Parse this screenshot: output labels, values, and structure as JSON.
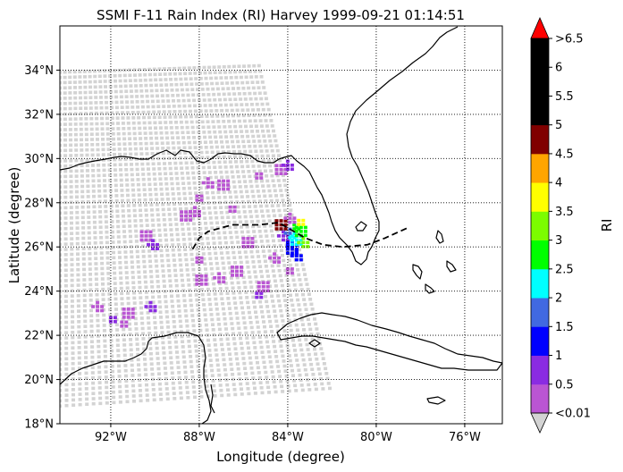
{
  "chart_data": {
    "type": "scatter",
    "title": "SSMI F-11 Rain Index (RI) Harvey 1999-09-21 01:14:51",
    "xlabel": "Longitude (degree)",
    "ylabel": "Latitude (degree)",
    "xlim": [
      -94.3,
      -74.3
    ],
    "ylim": [
      18,
      36
    ],
    "xticks": [
      {
        "value": -92,
        "label": "92°W"
      },
      {
        "value": -88,
        "label": "88°W"
      },
      {
        "value": -84,
        "label": "84°W"
      },
      {
        "value": -80,
        "label": "80°W"
      },
      {
        "value": -76,
        "label": "76°W"
      }
    ],
    "yticks": [
      {
        "value": 18,
        "label": "18°N"
      },
      {
        "value": 20,
        "label": "20°N"
      },
      {
        "value": 22,
        "label": "22°N"
      },
      {
        "value": 24,
        "label": "24°N"
      },
      {
        "value": 26,
        "label": "26°N"
      },
      {
        "value": 28,
        "label": "28°N"
      },
      {
        "value": 30,
        "label": "30°N"
      },
      {
        "value": 32,
        "label": "32°N"
      },
      {
        "value": 34,
        "label": "34°N"
      }
    ],
    "grid": "dotted",
    "colorbar": {
      "label": "RI",
      "under": {
        "label": "<0.01",
        "color": "#d3d3d3"
      },
      "over": {
        "label": ">6.5",
        "color": "#ff0000"
      },
      "bins": [
        {
          "lo": 0.01,
          "hi": 0.5,
          "color": "#ba55d3"
        },
        {
          "lo": 0.5,
          "hi": 1,
          "color": "#8a2be2"
        },
        {
          "lo": 1,
          "hi": 1.5,
          "color": "#0000ff"
        },
        {
          "lo": 1.5,
          "hi": 2,
          "color": "#4169e1"
        },
        {
          "lo": 2,
          "hi": 2.5,
          "color": "#00ffff"
        },
        {
          "lo": 2.5,
          "hi": 3,
          "color": "#00ff00"
        },
        {
          "lo": 3,
          "hi": 3.5,
          "color": "#7cfc00"
        },
        {
          "lo": 3.5,
          "hi": 4,
          "color": "#ffff00"
        },
        {
          "lo": 4,
          "hi": 4.5,
          "color": "#ffa500"
        },
        {
          "lo": 4.5,
          "hi": 5,
          "color": "#800000"
        },
        {
          "lo": 5,
          "hi": 5.5,
          "color": "#000000"
        },
        {
          "lo": 5.5,
          "hi": 6,
          "color": "#000000"
        },
        {
          "lo": 6,
          "hi": 6.5,
          "color": "#000000"
        }
      ],
      "tick_labels": [
        "<0.01",
        "0.5",
        "1",
        "1.5",
        "2",
        "2.5",
        "3",
        "3.5",
        "4",
        "4.5",
        "5",
        "5.5",
        "6",
        ">6.5"
      ]
    },
    "swath": {
      "color": "#d3d3d3",
      "corners": [
        [
          -94.3,
          33.9
        ],
        [
          -85.3,
          34.2
        ],
        [
          -84.7,
          31.5
        ],
        [
          -82.1,
          19.6
        ],
        [
          -94.3,
          18.8
        ]
      ]
    },
    "rain_clusters": [
      {
        "lon": -84.3,
        "lat": 29.5,
        "ri": 0.3
      },
      {
        "lon": -84.0,
        "lat": 29.7,
        "ri": 0.7
      },
      {
        "lon": -85.4,
        "lat": 29.3,
        "ri": 0.3
      },
      {
        "lon": -86.9,
        "lat": 28.8,
        "ri": 0.3
      },
      {
        "lon": -87.6,
        "lat": 28.9,
        "ri": 0.3
      },
      {
        "lon": -88.1,
        "lat": 28.3,
        "ri": 0.3
      },
      {
        "lon": -88.6,
        "lat": 27.4,
        "ri": 0.3
      },
      {
        "lon": -88.2,
        "lat": 27.6,
        "ri": 0.3
      },
      {
        "lon": -86.6,
        "lat": 27.8,
        "ri": 0.3
      },
      {
        "lon": -85.8,
        "lat": 26.2,
        "ri": 0.3
      },
      {
        "lon": -84.6,
        "lat": 25.5,
        "ri": 0.3
      },
      {
        "lon": -84.0,
        "lat": 25.0,
        "ri": 0.3
      },
      {
        "lon": -90.4,
        "lat": 26.5,
        "ri": 0.3
      },
      {
        "lon": -90.1,
        "lat": 26.1,
        "ri": 0.7
      },
      {
        "lon": -88.1,
        "lat": 25.5,
        "ri": 0.3
      },
      {
        "lon": -86.3,
        "lat": 24.9,
        "ri": 0.3
      },
      {
        "lon": -87.1,
        "lat": 24.6,
        "ri": 0.3
      },
      {
        "lon": -85.4,
        "lat": 23.9,
        "ri": 0.7
      },
      {
        "lon": -85.1,
        "lat": 24.2,
        "ri": 0.3
      },
      {
        "lon": -90.2,
        "lat": 23.3,
        "ri": 0.7
      },
      {
        "lon": -92.0,
        "lat": 22.8,
        "ri": 0.7
      },
      {
        "lon": -91.2,
        "lat": 23.0,
        "ri": 0.3
      },
      {
        "lon": -92.6,
        "lat": 23.3,
        "ri": 0.3
      },
      {
        "lon": -91.5,
        "lat": 22.6,
        "ri": 0.3
      },
      {
        "lon": -87.9,
        "lat": 24.5,
        "ri": 0.3
      },
      {
        "lon": -84.2,
        "lat": 26.5,
        "ri": 0.7
      },
      {
        "lon": -84.0,
        "lat": 26.2,
        "ri": 1.2
      },
      {
        "lon": -83.8,
        "lat": 25.9,
        "ri": 1.2
      },
      {
        "lon": -83.6,
        "lat": 25.6,
        "ri": 1.2
      },
      {
        "lon": -83.9,
        "lat": 26.6,
        "ri": 2.2
      },
      {
        "lon": -83.6,
        "lat": 26.3,
        "ri": 2.2
      },
      {
        "lon": -84.1,
        "lat": 26.8,
        "ri": 1.7
      },
      {
        "lon": -83.7,
        "lat": 27.0,
        "ri": 2.7
      },
      {
        "lon": -83.4,
        "lat": 26.7,
        "ri": 2.7
      },
      {
        "lon": -83.3,
        "lat": 26.2,
        "ri": 3.2
      },
      {
        "lon": -83.5,
        "lat": 27.2,
        "ri": 3.7
      },
      {
        "lon": -84.3,
        "lat": 27.0,
        "ri": 4.7
      },
      {
        "lon": -83.9,
        "lat": 27.3,
        "ri": 0.3
      }
    ],
    "track": [
      [
        -88.3,
        25.9
      ],
      [
        -88.0,
        26.4
      ],
      [
        -87.6,
        26.7
      ],
      [
        -86.5,
        27.0
      ],
      [
        -85.3,
        27.0
      ],
      [
        -84.4,
        27.1
      ],
      [
        -83.9,
        26.8
      ],
      [
        -83.2,
        26.4
      ],
      [
        -82.4,
        26.1
      ],
      [
        -81.5,
        26.0
      ],
      [
        -80.4,
        26.1
      ],
      [
        -79.6,
        26.4
      ],
      [
        -78.5,
        26.9
      ]
    ]
  }
}
